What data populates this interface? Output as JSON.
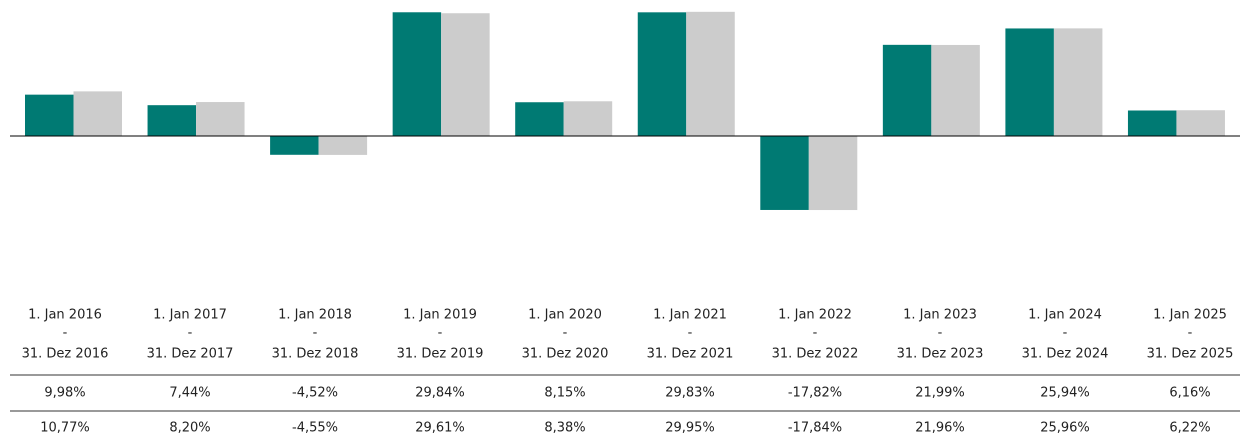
{
  "chart_data": {
    "type": "bar",
    "categories": [
      [
        "1. Jan 2016",
        "-",
        "31. Dez 2016"
      ],
      [
        "1. Jan 2017",
        "-",
        "31. Dez 2017"
      ],
      [
        "1. Jan 2018",
        "-",
        "31. Dez 2018"
      ],
      [
        "1. Jan 2019",
        "-",
        "31. Dez 2019"
      ],
      [
        "1. Jan 2020",
        "-",
        "31. Dez 2020"
      ],
      [
        "1. Jan 2021",
        "-",
        "31. Dez 2021"
      ],
      [
        "1. Jan 2022",
        "-",
        "31. Dez 2022"
      ],
      [
        "1. Jan 2023",
        "-",
        "31. Dez 2023"
      ],
      [
        "1. Jan 2024",
        "-",
        "31. Dez 2024"
      ],
      [
        "1. Jan 2025",
        "-",
        "31. Dez 2025"
      ]
    ],
    "series": [
      {
        "color": "#007a73",
        "values": [
          9.98,
          7.44,
          -4.52,
          29.84,
          8.15,
          29.83,
          -17.82,
          21.99,
          25.94,
          6.16
        ],
        "value_labels": [
          "9,98%",
          "7,44%",
          "-4,52%",
          "29,84%",
          "8,15%",
          "29,83%",
          "-17,82%",
          "21,99%",
          "25,94%",
          "6,16%"
        ]
      },
      {
        "color": "#cccccc",
        "values": [
          10.77,
          8.2,
          -4.55,
          29.61,
          8.38,
          29.95,
          -17.84,
          21.96,
          25.96,
          6.22
        ],
        "value_labels": [
          "10,77%",
          "8,20%",
          "-4,55%",
          "29,61%",
          "8,38%",
          "29,95%",
          "-17,84%",
          "21,96%",
          "25,96%",
          "6,22%"
        ]
      }
    ],
    "ylim": [
      -20,
      32.8
    ]
  }
}
